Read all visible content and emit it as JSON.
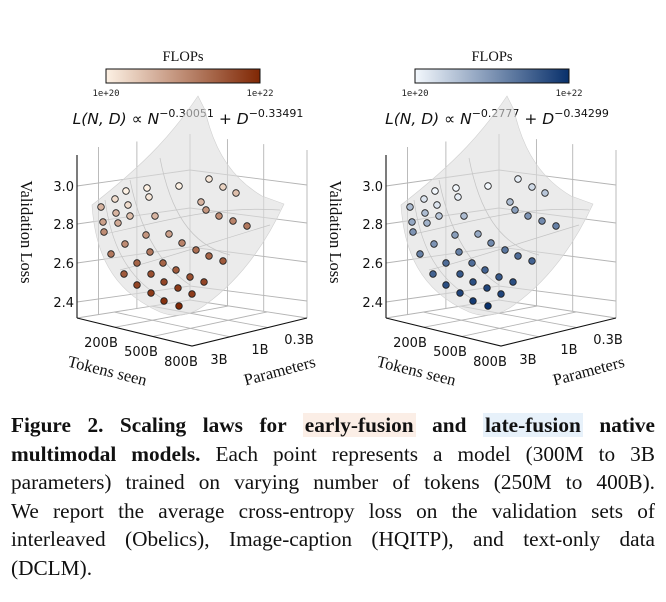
{
  "chart_data": [
    {
      "type": "scatter",
      "projection": "3d",
      "formula": {
        "lhs": "L(N, D) ∝ N",
        "exp_n": "−0.30051",
        "mid": " + D",
        "exp_d": "−0.33491"
      },
      "colorbar": {
        "label": "FLOPs",
        "min_label": "1e+20",
        "max_label": "1e+22",
        "scale": "log",
        "color_low": "#fdf1e4",
        "color_high": "#7f2704"
      },
      "zlabel": "Validation Loss",
      "zticks": [
        "3.0",
        "2.8",
        "2.6",
        "2.4"
      ],
      "xlabel": "Tokens seen",
      "xticks": [
        "200B",
        "500B",
        "800B"
      ],
      "ylabel": "Parameters",
      "yticks": [
        "3B",
        "1B",
        "0.3B"
      ],
      "surface": "fitted scaling-law surface"
    },
    {
      "type": "scatter",
      "projection": "3d",
      "formula": {
        "lhs": "L(N, D) ∝ N",
        "exp_n": "−0.2777",
        "mid": " + D",
        "exp_d": "−0.34299"
      },
      "colorbar": {
        "label": "FLOPs",
        "min_label": "1e+20",
        "max_label": "1e+22",
        "scale": "log",
        "color_low": "#f3f8fd",
        "color_high": "#08306b"
      },
      "zlabel": "Validation Loss",
      "zticks": [
        "3.0",
        "2.8",
        "2.6",
        "2.4"
      ],
      "xlabel": "Tokens seen",
      "xticks": [
        "200B",
        "500B",
        "800B"
      ],
      "ylabel": "Parameters",
      "yticks": [
        "3B",
        "1B",
        "0.3B"
      ],
      "surface": "fitted scaling-law surface"
    }
  ],
  "caption": {
    "label": "Figure 2.",
    "title_a": " Scaling laws for ",
    "early": "early-fusion",
    "title_b": " and ",
    "late": "late-fusion",
    "title_c": " native",
    "title_d": "multimodal models.",
    "line2": " Each point represents a model (300M to 3B",
    "line3": "parameters) trained on varying number of tokens (250M to 400B).",
    "line4": "We report the average cross-entropy loss on the validation sets of",
    "line5": "interleaved (Obelics), Image-caption (HQITP), and text-only data",
    "line6": "(DCLM).",
    "early_bg": "#fbeee6",
    "late_bg": "#e7f1fa"
  }
}
